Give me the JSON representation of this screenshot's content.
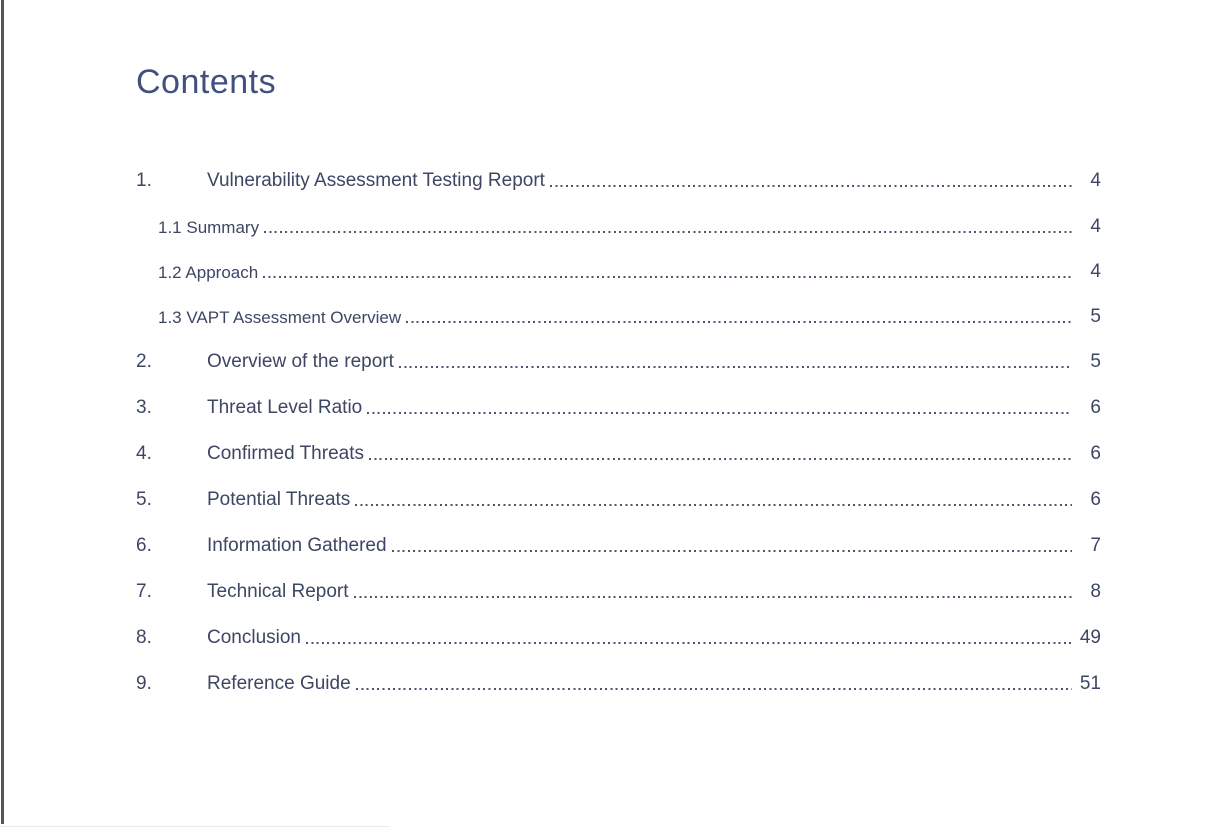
{
  "page": {
    "title": "Contents"
  },
  "toc": {
    "entries": [
      {
        "level": 1,
        "number": "1.",
        "label": "Vulnerability Assessment Testing Report",
        "page": "4"
      },
      {
        "level": 2,
        "number": "",
        "label": "1.1 Summary",
        "page": "4"
      },
      {
        "level": 2,
        "number": "",
        "label": "1.2 Approach",
        "page": "4"
      },
      {
        "level": 2,
        "number": "",
        "label": "1.3 VAPT Assessment Overview",
        "page": "5"
      },
      {
        "level": 1,
        "number": "2.",
        "label": "Overview of the report",
        "page": "5"
      },
      {
        "level": 1,
        "number": "3.",
        "label": "Threat Level Ratio",
        "page": "6"
      },
      {
        "level": 1,
        "number": "4.",
        "label": "Confirmed Threats",
        "page": "6"
      },
      {
        "level": 1,
        "number": "5.",
        "label": "Potential Threats",
        "page": "6"
      },
      {
        "level": 1,
        "number": "6.",
        "label": "Information Gathered",
        "page": "7"
      },
      {
        "level": 1,
        "number": "7.",
        "label": "Technical Report",
        "page": "8"
      },
      {
        "level": 1,
        "number": "8.",
        "label": "Conclusion",
        "page": "49"
      },
      {
        "level": 1,
        "number": "9.",
        "label": "Reference Guide",
        "page": "51"
      }
    ]
  },
  "colors": {
    "heading_text": "#41507e",
    "body_text": "#3d4663",
    "leader_dots": "#4d5570",
    "page_left_edge": "#56565a"
  }
}
